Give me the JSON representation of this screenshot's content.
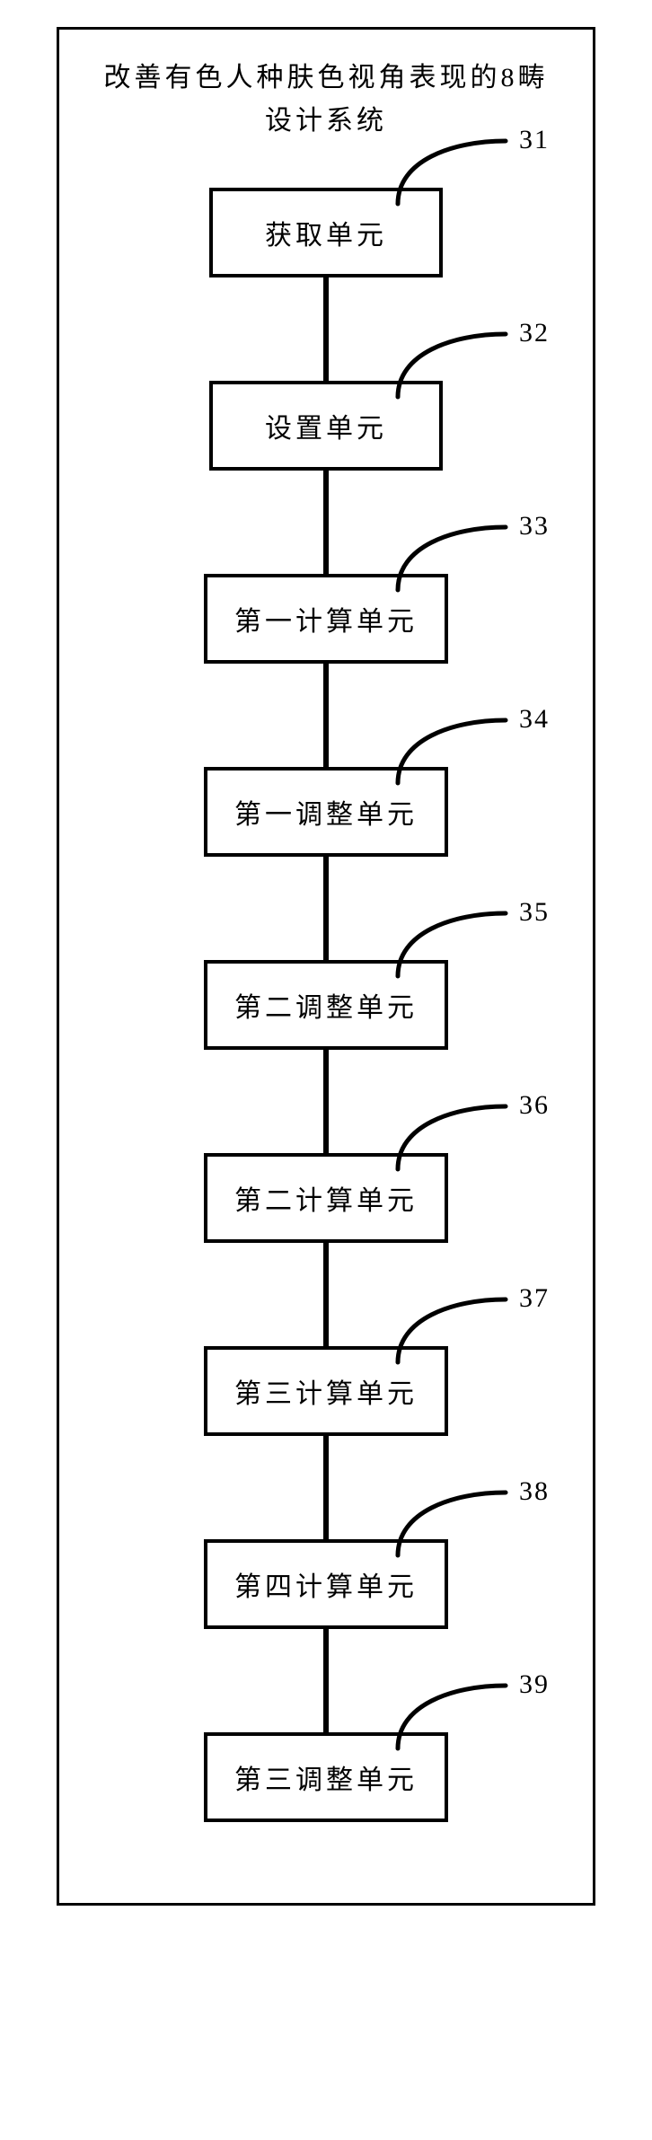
{
  "diagram": {
    "title_line1": "改善有色人种肤色视角表现的8畴",
    "title_line2": "设计系统",
    "frame_border_color": "#000000",
    "frame_border_width": 3,
    "node_border_width": 4,
    "node_border_color": "#000000",
    "node_bg": "#ffffff",
    "connector_width": 6,
    "connector_height": 115,
    "connector_color": "#000000",
    "font_family": "SimSun",
    "title_fontsize": 30,
    "node_fontsize": 30,
    "label_fontsize": 30,
    "callout_stroke_width": 5,
    "nodes": [
      {
        "label": "获取单元",
        "num": "31"
      },
      {
        "label": "设置单元",
        "num": "32"
      },
      {
        "label": "第一计算单元",
        "num": "33"
      },
      {
        "label": "第一调整单元",
        "num": "34"
      },
      {
        "label": "第二调整单元",
        "num": "35"
      },
      {
        "label": "第二计算单元",
        "num": "36"
      },
      {
        "label": "第三计算单元",
        "num": "37"
      },
      {
        "label": "第四计算单元",
        "num": "38"
      },
      {
        "label": "第三调整单元",
        "num": "39"
      }
    ]
  }
}
